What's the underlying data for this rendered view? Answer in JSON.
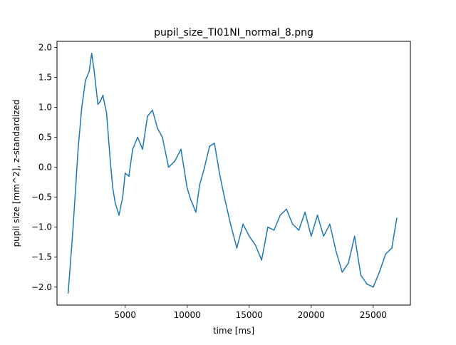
{
  "chart_data": {
    "type": "line",
    "title": "pupil_size_TI01NI_normal_8.png",
    "xlabel": "time [ms]",
    "ylabel": "pupil size [mm^2], z-standardized",
    "xlim": [
      -500,
      28000
    ],
    "ylim": [
      -2.3,
      2.1
    ],
    "xticks": [
      5000,
      10000,
      15000,
      20000,
      25000
    ],
    "yticks": [
      -2.0,
      -1.5,
      -1.0,
      -0.5,
      0.0,
      0.5,
      1.0,
      1.5,
      2.0
    ],
    "xtick_labels": [
      "5000",
      "10000",
      "15000",
      "20000",
      "25000"
    ],
    "ytick_labels": [
      "−2.0",
      "−1.5",
      "−1.0",
      "−0.5",
      "0.0",
      "0.5",
      "1.0",
      "1.5",
      "2.0"
    ],
    "grid": false,
    "series_color": "#1f77b4",
    "series": [
      {
        "x": [
          400,
          800,
          1200,
          1500,
          1800,
          2100,
          2300,
          2500,
          2800,
          3000,
          3200,
          3500,
          3800,
          4000,
          4200,
          4500,
          4800,
          5000,
          5300,
          5600,
          6000,
          6400,
          6800,
          7200,
          7600,
          8000,
          8500,
          9000,
          9500,
          10000,
          10300,
          10700,
          11000,
          11400,
          11800,
          12200,
          12600,
          13000,
          13500,
          14000,
          14500,
          15000,
          15500,
          16000,
          16500,
          17000,
          17500,
          18000,
          18500,
          19000,
          19500,
          20000,
          20500,
          21000,
          21500,
          22000,
          22500,
          23000,
          23500,
          24000,
          24500,
          25000,
          25500,
          26000,
          26500,
          26900
        ],
        "values": [
          -2.1,
          -1.0,
          0.3,
          1.0,
          1.45,
          1.6,
          1.9,
          1.6,
          1.05,
          1.1,
          1.2,
          0.9,
          0.1,
          -0.35,
          -0.6,
          -0.8,
          -0.5,
          -0.1,
          -0.15,
          0.3,
          0.5,
          0.3,
          0.85,
          0.95,
          0.65,
          0.5,
          0.0,
          0.1,
          0.3,
          -0.35,
          -0.55,
          -0.75,
          -0.3,
          0.0,
          0.35,
          0.4,
          -0.1,
          -0.5,
          -0.95,
          -1.35,
          -0.95,
          -1.15,
          -1.3,
          -1.55,
          -1.0,
          -1.05,
          -0.8,
          -0.7,
          -0.95,
          -1.05,
          -0.75,
          -1.15,
          -0.8,
          -1.15,
          -0.95,
          -1.4,
          -1.75,
          -1.6,
          -1.15,
          -1.8,
          -1.95,
          -2.0,
          -1.75,
          -1.45,
          -1.35,
          -0.85
        ]
      }
    ]
  }
}
